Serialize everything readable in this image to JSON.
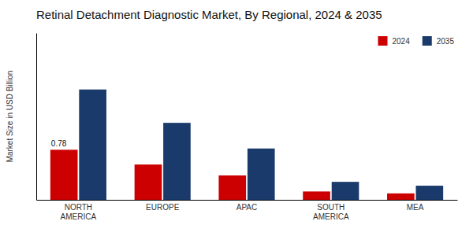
{
  "chart_data": {
    "type": "bar",
    "title": "Retinal Detachment Diagnostic Market, By Regional, 2024 & 2035",
    "ylabel": "Market Size in USD Billion",
    "categories": [
      "NORTH\nAMERICA",
      "EUROPE",
      "APAC",
      "SOUTH\nAMERICA",
      "MEA"
    ],
    "series": [
      {
        "name": "2024",
        "color": "#cc0000",
        "values": [
          0.78,
          0.55,
          0.38,
          0.13,
          0.1
        ]
      },
      {
        "name": "2035",
        "color": "#1a3a6b",
        "values": [
          1.72,
          1.2,
          0.8,
          0.28,
          0.22
        ]
      }
    ],
    "annotations": [
      {
        "text": "0.78",
        "x": "NORTH\nAMERICA",
        "series": "2024",
        "y": 0.78
      }
    ],
    "ylim": [
      0,
      2.6
    ],
    "yticks": [],
    "tick_labels": "x",
    "grid": false,
    "legend": "upper right"
  }
}
